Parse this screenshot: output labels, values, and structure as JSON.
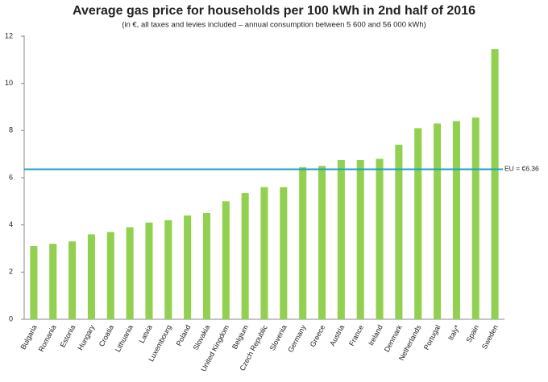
{
  "chart_data": {
    "type": "bar",
    "title": "Average gas price for households per 100 kWh in 2nd half of 2016",
    "subtitle": "(in €, all taxes and levies included – annual consumption between 5 600 and 56 000 kWh)",
    "categories": [
      "Bulgaria",
      "Romania",
      "Estonia",
      "Hungary",
      "Croatia",
      "Lithuania",
      "Latvia",
      "Luxembourg",
      "Poland",
      "Slovakia",
      "United Kingdom",
      "Belgium",
      "Czech Republic",
      "Slovenia",
      "Germany",
      "Greece",
      "Austria",
      "France",
      "Ireland",
      "Denmark",
      "Netherlands",
      "Portugal",
      "Italy*",
      "Spain",
      "Sweden"
    ],
    "values": [
      3.1,
      3.2,
      3.3,
      3.6,
      3.7,
      3.9,
      4.1,
      4.2,
      4.4,
      4.5,
      5.0,
      5.35,
      5.6,
      5.6,
      6.45,
      6.5,
      6.75,
      6.75,
      6.8,
      7.4,
      8.1,
      8.3,
      8.4,
      8.55,
      11.45
    ],
    "color": "#92d050",
    "reference": {
      "value": 6.36,
      "label": "EU = €6.36",
      "color": "#1aa3c8"
    },
    "ylim": [
      0,
      12
    ],
    "yticks": [
      0,
      2,
      4,
      6,
      8,
      10,
      12
    ],
    "grid": false
  }
}
